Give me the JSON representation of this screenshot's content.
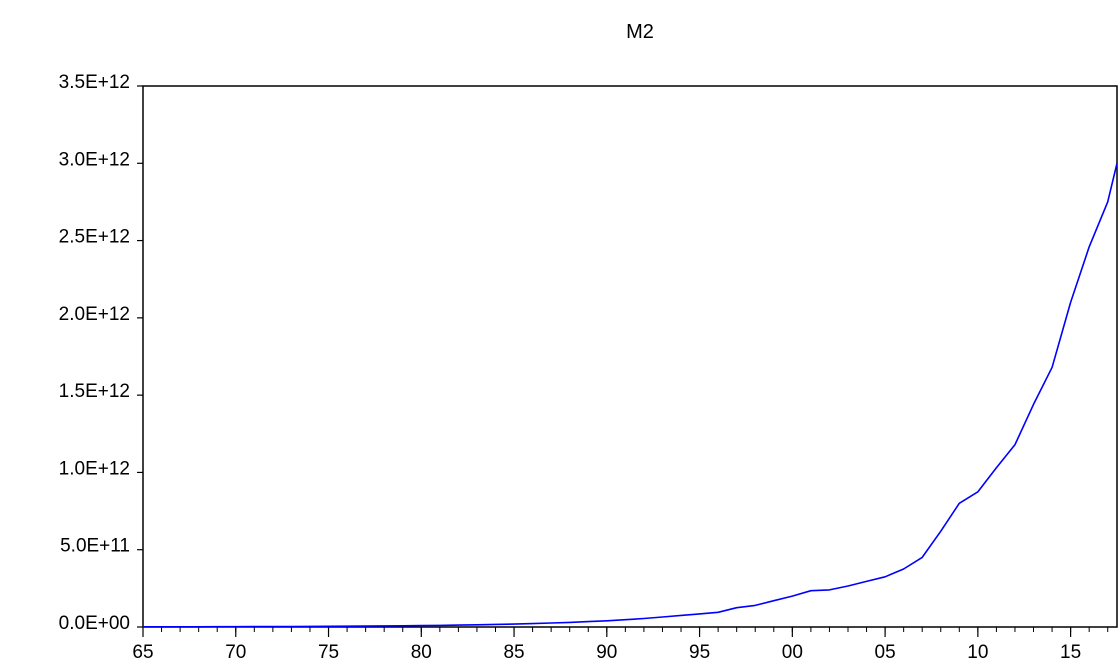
{
  "chart_data": {
    "type": "line",
    "title": "M2",
    "xlabel": "",
    "ylabel": "",
    "xlim": [
      1965,
      2017.5
    ],
    "ylim": [
      0,
      3500000000000
    ],
    "grid": false,
    "x_tick_labels": [
      "65",
      "70",
      "75",
      "80",
      "85",
      "90",
      "95",
      "00",
      "05",
      "10",
      "15"
    ],
    "x_tick_values": [
      1965,
      1970,
      1975,
      1980,
      1985,
      1990,
      1995,
      2000,
      2005,
      2010,
      2015
    ],
    "y_tick_labels": [
      "0.0E+00",
      "5.0E+11",
      "1.0E+12",
      "1.5E+12",
      "2.0E+12",
      "2.5E+12",
      "3.0E+12",
      "3.5E+12"
    ],
    "y_tick_values": [
      0,
      500000000000,
      1000000000000,
      1500000000000,
      2000000000000,
      2500000000000,
      3000000000000,
      3500000000000
    ],
    "series": [
      {
        "color": "#0000ff",
        "x": [
          1965,
          1966,
          1967,
          1968,
          1969,
          1970,
          1971,
          1972,
          1973,
          1974,
          1975,
          1976,
          1977,
          1978,
          1979,
          1980,
          1981,
          1982,
          1983,
          1984,
          1985,
          1986,
          1987,
          1988,
          1989,
          1990,
          1991,
          1992,
          1993,
          1994,
          1995,
          1996,
          1997,
          1998,
          1999,
          2000,
          2001,
          2002,
          2003,
          2004,
          2005,
          2006,
          2007,
          2008,
          2009,
          2010,
          2011,
          2012,
          2013,
          2014,
          2015,
          2016,
          2017
        ],
        "values": [
          1000000000,
          1200000000,
          1400000000,
          1600000000,
          1900000000,
          2200000000,
          2600000000,
          3000000000,
          3500000000,
          4000000000,
          4600000000,
          5300000000,
          6000000000,
          6900000000,
          7900000000,
          9000000000,
          10500000000,
          12000000000,
          14000000000,
          16500000000,
          19000000000,
          22000000000,
          26000000000,
          30000000000,
          35000000000,
          40000000000,
          47000000000,
          55000000000,
          65000000000,
          75000000000,
          85000000000,
          95000000000,
          125000000000,
          140000000000,
          170000000000,
          200000000000,
          235000000000,
          240000000000,
          265000000000,
          295000000000,
          325000000000,
          375000000000,
          450000000000,
          620000000000,
          800000000000,
          875000000000,
          1030000000000,
          1180000000000,
          1440000000000,
          1680000000000,
          2100000000000,
          2460000000000,
          2750000000000
        ]
      }
    ],
    "series_end": {
      "x": 2017.5,
      "value": 3000000000000
    }
  }
}
